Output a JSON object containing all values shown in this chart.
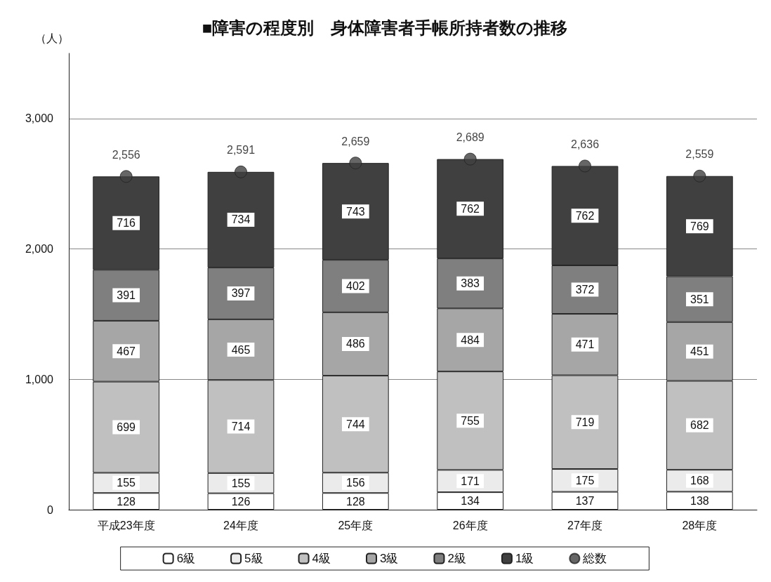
{
  "chart_data": {
    "type": "bar",
    "title": "■障害の程度別　身体障害者手帳所持者数の推移",
    "ylabel": "（人）",
    "stacked": true,
    "categories": [
      "平成23年度",
      "24年度",
      "25年度",
      "26年度",
      "27年度",
      "28年度"
    ],
    "series": [
      {
        "name": "6級",
        "color": "#ffffff",
        "values": [
          128,
          126,
          128,
          134,
          137,
          138
        ]
      },
      {
        "name": "5級",
        "color": "#ebebeb",
        "values": [
          155,
          155,
          156,
          171,
          175,
          168
        ]
      },
      {
        "name": "4級",
        "color": "#c0c0c0",
        "values": [
          699,
          714,
          744,
          755,
          719,
          682
        ]
      },
      {
        "name": "3級",
        "color": "#a6a6a6",
        "values": [
          467,
          465,
          486,
          484,
          471,
          451
        ]
      },
      {
        "name": "2級",
        "color": "#7f7f7f",
        "values": [
          391,
          397,
          402,
          383,
          372,
          351
        ]
      },
      {
        "name": "1級",
        "color": "#404040",
        "values": [
          716,
          734,
          743,
          762,
          762,
          769
        ]
      },
      {
        "name": "総数",
        "type": "scatter",
        "color": "#404040",
        "x": [
          "平成23年度",
          "24年度",
          "25年度",
          "26年度",
          "27年度",
          "28年度"
        ],
        "values": [
          2556,
          2591,
          2659,
          2689,
          2636,
          2559
        ],
        "value_labels": [
          "2,556",
          "2,591",
          "2,659",
          "2,689",
          "2,636",
          "2,559"
        ]
      }
    ],
    "ylim": [
      0,
      3500
    ],
    "yticks": [
      0,
      {
        "value": 1000,
        "label": "1,000"
      },
      {
        "value": 2000,
        "label": "2,000"
      },
      {
        "value": 3000,
        "label": "3,000"
      }
    ],
    "grid": "y",
    "legend": "bottom",
    "marker": "circle",
    "data_labels": true
  }
}
